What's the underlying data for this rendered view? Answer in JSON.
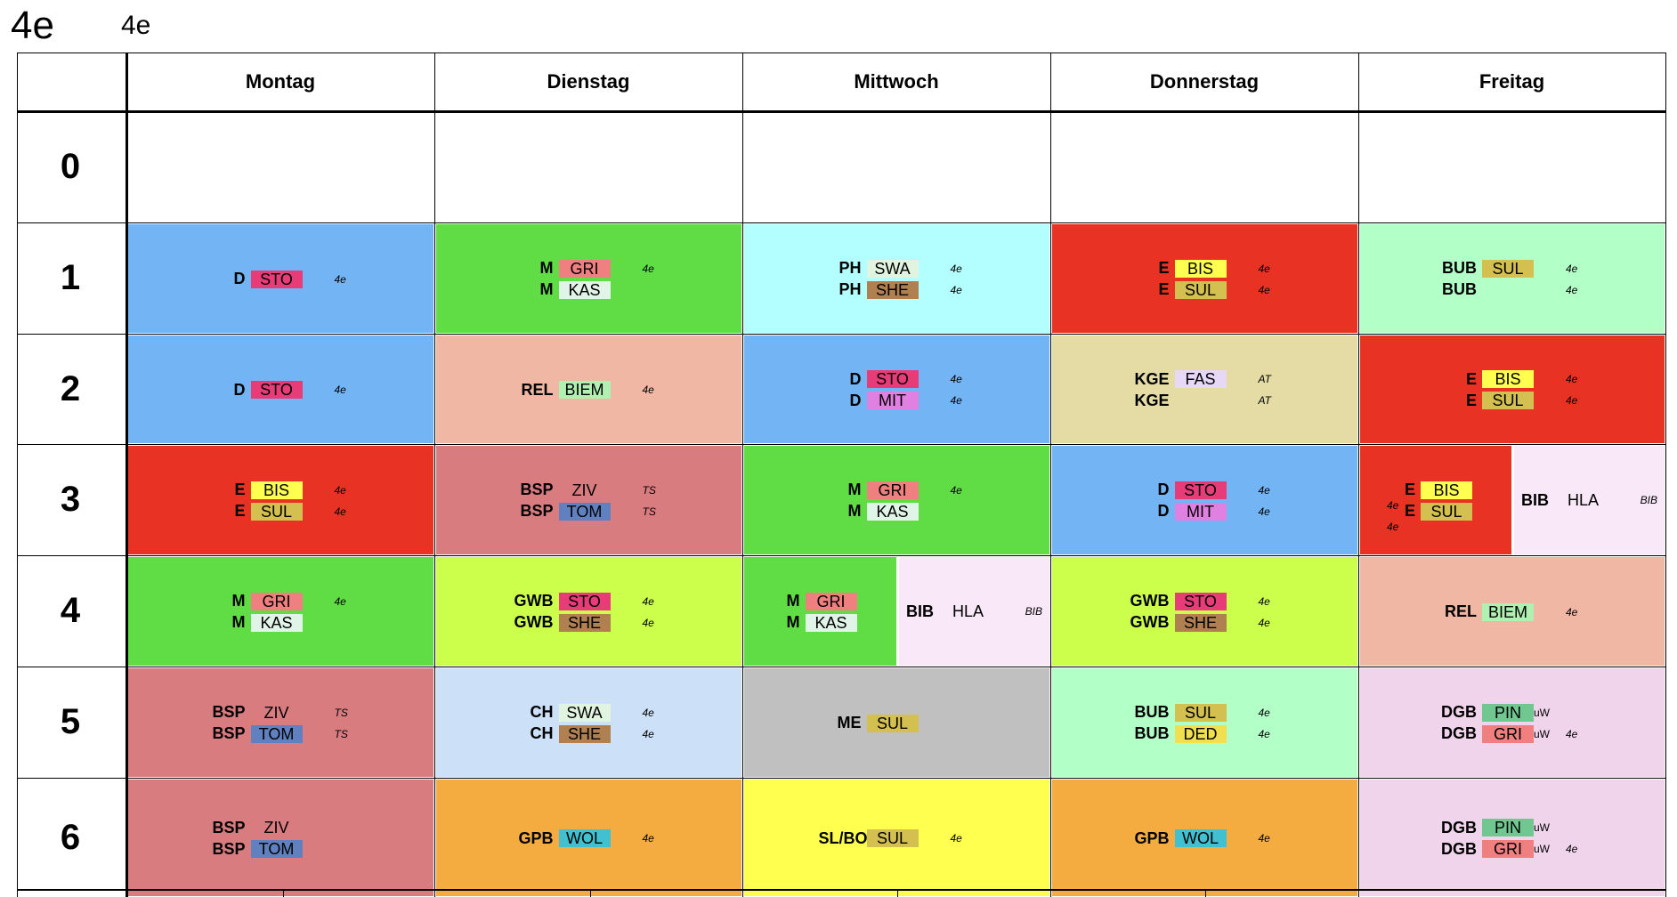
{
  "header": {
    "title_big": "4e",
    "title_small": "4e"
  },
  "days": [
    "Montag",
    "Dienstag",
    "Mittwoch",
    "Donnerstag",
    "Freitag"
  ],
  "periods": [
    "0",
    "1",
    "2",
    "3",
    "4",
    "5",
    "6"
  ],
  "colors": {
    "D": "#73b4f5",
    "M": "#60dc44",
    "PH": "#b3ffff",
    "E": "#e83224",
    "BUB": "#b3ffc8",
    "REL": "#f0b8a4",
    "KGE": "#e4dca4",
    "BSP": "#d87c80",
    "GWB": "#ccff4c",
    "BIB": "#f8e8f8",
    "CH": "#cce0f8",
    "ME": "#c0c0c0",
    "DGB": "#f0d4ec",
    "GPB": "#f4ac40",
    "SLBO": "#ffff50",
    "STO": "#e83c78",
    "GRI": "#f08080",
    "KAS": "#e0f4e8",
    "SWA": "#e0f4e0",
    "SHE": "#b08050",
    "BIS": "#ffff50",
    "SUL": "#d4c050",
    "BIEM": "#b0f0b0",
    "MIT": "#e080e0",
    "FAS": "#e8d8f8",
    "TOM": "#6080c0",
    "WOL": "#40c0d0",
    "PIN": "#70c890",
    "DED": "#f0e050"
  },
  "schedule": {
    "p1": [
      [
        {
          "s": "D",
          "t": "STO",
          "r": "4e"
        }
      ],
      [
        {
          "s": "M",
          "t": "GRI",
          "r": "4e"
        },
        {
          "s": "M",
          "t": "KAS",
          "r": ""
        }
      ],
      [
        {
          "s": "PH",
          "t": "SWA",
          "r": "4e"
        },
        {
          "s": "PH",
          "t": "SHE",
          "r": "4e"
        }
      ],
      [
        {
          "s": "E",
          "t": "BIS",
          "r": "4e"
        },
        {
          "s": "E",
          "t": "SUL",
          "r": "4e"
        }
      ],
      [
        {
          "s": "BUB",
          "t": "SUL",
          "r": "4e"
        },
        {
          "s": "BUB",
          "t": "",
          "r": "4e"
        }
      ]
    ],
    "p2": [
      [
        {
          "s": "D",
          "t": "STO",
          "r": "4e"
        }
      ],
      [
        {
          "s": "REL",
          "t": "BIEM",
          "r": "4e"
        }
      ],
      [
        {
          "s": "D",
          "t": "STO",
          "r": "4e"
        },
        {
          "s": "D",
          "t": "MIT",
          "r": "4e"
        }
      ],
      [
        {
          "s": "KGE",
          "t": "FAS",
          "r": "AT"
        },
        {
          "s": "KGE",
          "t": "",
          "r": "AT"
        }
      ],
      [
        {
          "s": "E",
          "t": "BIS",
          "r": "4e"
        },
        {
          "s": "E",
          "t": "SUL",
          "r": "4e"
        }
      ]
    ],
    "p3": [
      [
        {
          "s": "E",
          "t": "BIS",
          "r": "4e"
        },
        {
          "s": "E",
          "t": "SUL",
          "r": "4e"
        }
      ],
      [
        {
          "s": "BSP",
          "t": "ZIV",
          "r": "TS"
        },
        {
          "s": "BSP",
          "t": "TOM",
          "r": "TS"
        }
      ],
      [
        {
          "s": "M",
          "t": "GRI",
          "r": "4e"
        },
        {
          "s": "M",
          "t": "KAS",
          "r": ""
        }
      ],
      [
        {
          "s": "D",
          "t": "STO",
          "r": "4e"
        },
        {
          "s": "D",
          "t": "MIT",
          "r": "4e"
        }
      ],
      [
        {
          "s": "E",
          "t": "BIS",
          "r": "4e"
        },
        {
          "s": "E",
          "t": "SUL",
          "r": "4e"
        }
      ]
    ],
    "p3_fri_bib": {
      "s": "BIB",
      "t": "HLA",
      "r": "BIB"
    },
    "p4": [
      [
        {
          "s": "M",
          "t": "GRI",
          "r": "4e"
        },
        {
          "s": "M",
          "t": "KAS",
          "r": ""
        }
      ],
      [
        {
          "s": "GWB",
          "t": "STO",
          "r": "4e"
        },
        {
          "s": "GWB",
          "t": "SHE",
          "r": "4e"
        }
      ],
      [
        {
          "s": "M",
          "t": "GRI",
          "r": ""
        },
        {
          "s": "M",
          "t": "KAS",
          "r": ""
        }
      ],
      [
        {
          "s": "GWB",
          "t": "STO",
          "r": "4e"
        },
        {
          "s": "GWB",
          "t": "SHE",
          "r": "4e"
        }
      ],
      [
        {
          "s": "REL",
          "t": "BIEM",
          "r": "4e"
        }
      ]
    ],
    "p4_wed_bib": {
      "s": "BIB",
      "t": "HLA",
      "r": "BIB"
    },
    "p5": [
      [
        {
          "s": "BSP",
          "t": "ZIV",
          "r": "TS"
        },
        {
          "s": "BSP",
          "t": "TOM",
          "r": "TS"
        }
      ],
      [
        {
          "s": "CH",
          "t": "SWA",
          "r": "4e"
        },
        {
          "s": "CH",
          "t": "SHE",
          "r": "4e"
        }
      ],
      [
        {
          "s": "ME",
          "t": "SUL",
          "r": ""
        }
      ],
      [
        {
          "s": "BUB",
          "t": "SUL",
          "r": "4e"
        },
        {
          "s": "BUB",
          "t": "DED",
          "r": "4e"
        }
      ],
      [
        {
          "s": "DGB",
          "t": "PIN",
          "x": "uW",
          "r": ""
        },
        {
          "s": "DGB",
          "t": "GRI",
          "x": "uW",
          "r": "4e"
        }
      ]
    ],
    "p6": [
      [
        {
          "s": "BSP",
          "t": "ZIV",
          "r": ""
        },
        {
          "s": "BSP",
          "t": "TOM",
          "r": ""
        }
      ],
      [
        {
          "s": "GPB",
          "t": "WOL",
          "r": "4e"
        }
      ],
      [
        {
          "s": "SL/BO",
          "t": "SUL",
          "r": "4e"
        }
      ],
      [
        {
          "s": "GPB",
          "t": "WOL",
          "r": "4e"
        }
      ],
      [
        {
          "s": "DGB",
          "t": "PIN",
          "x": "uW",
          "r": ""
        },
        {
          "s": "DGB",
          "t": "GRI",
          "x": "uW",
          "r": "4e"
        }
      ]
    ]
  }
}
